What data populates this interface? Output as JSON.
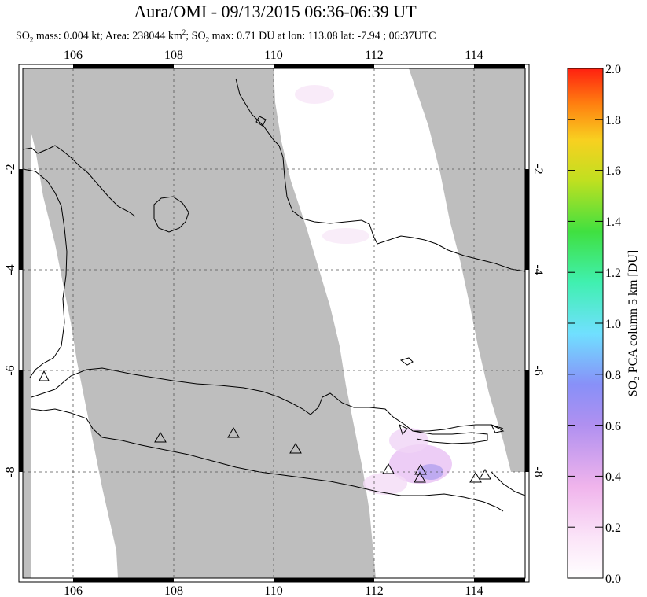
{
  "title": "Aura/OMI - 09/13/2015 06:36-06:39 UT",
  "subtitle": {
    "p1": "SO",
    "p2": " mass: 0.004 kt; Area: 238044 km",
    "p3": "; SO",
    "p4": " max: 0.71 DU at lon: 113.08 lat: -7.94 ; 06:37UTC"
  },
  "map": {
    "lon_ticks": [
      "106",
      "108",
      "110",
      "112",
      "114"
    ],
    "lat_ticks": [
      "-2",
      "-4",
      "-6",
      "-8"
    ],
    "lat_ticks_right": [
      "-2",
      "-4",
      "-6",
      "-8"
    ],
    "lon_range": [
      105,
      115
    ],
    "lat_range": [
      -10,
      0
    ],
    "no_data_color": "#bebebe",
    "coastline_color": "#000000",
    "volcano_marker": "triangle-outline"
  },
  "colorbar": {
    "label": "SO₂ PCA column 5 km [DU]",
    "ticks": [
      "2.0",
      "1.8",
      "1.6",
      "1.4",
      "1.2",
      "1.0",
      "0.8",
      "0.6",
      "0.4",
      "0.2",
      "0.0"
    ],
    "min": 0.0,
    "max": 2.0,
    "colors": [
      "#ffffff",
      "#f5c6f0",
      "#b88cf0",
      "#8080ff",
      "#60e0ff",
      "#40f0a0",
      "#60e040",
      "#c0e020",
      "#f0d020",
      "#ff8000",
      "#ff2000"
    ]
  }
}
